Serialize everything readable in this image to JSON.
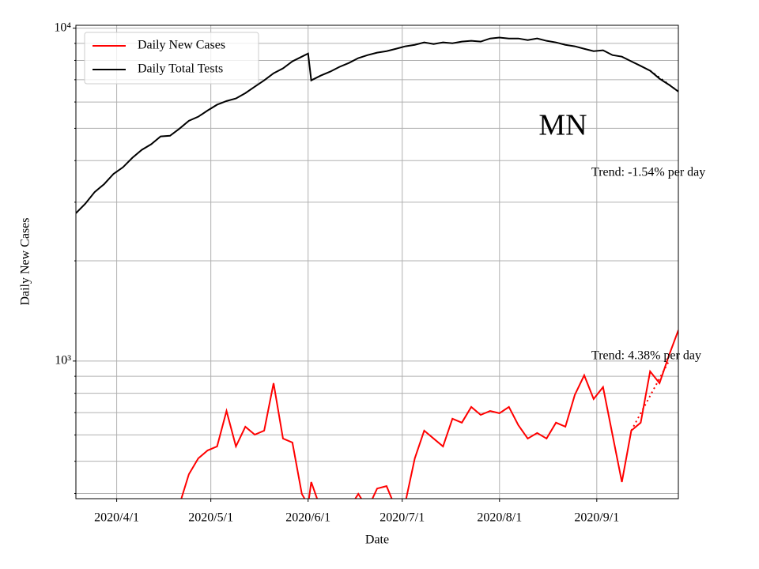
{
  "chart_data": {
    "type": "line",
    "y_label": "Daily New Cases",
    "x_label": "Date",
    "log_scale": true,
    "grid": true,
    "legend": "upper left",
    "annotations": [
      "MN",
      "Trend: -1.54% per day",
      "Trend: 4.38% per day"
    ],
    "xlim": [
      "2020-03-19",
      "2020-09-27"
    ],
    "xticks": [
      {
        "value": "2020-04-01",
        "label": "2020/4/1"
      },
      {
        "value": "2020-05-01",
        "label": "2020/5/1"
      },
      {
        "value": "2020-06-01",
        "label": "2020/6/1"
      },
      {
        "value": "2020-07-01",
        "label": "2020/7/1"
      },
      {
        "value": "2020-08-01",
        "label": "2020/8/1"
      },
      {
        "value": "2020-09-01",
        "label": "2020/9/1"
      }
    ],
    "ylim": [
      386,
      10200
    ],
    "yticks": [
      {
        "value": 1000,
        "label": "10³"
      },
      {
        "value": 10000,
        "label": "10⁴"
      }
    ],
    "yticks_minor": [
      400,
      500,
      600,
      700,
      800,
      900,
      2000,
      3000,
      4000,
      5000,
      6000,
      7000,
      8000,
      9000
    ],
    "x": [
      "2020-03-19",
      "2020-03-22",
      "2020-03-25",
      "2020-03-28",
      "2020-03-31",
      "2020-04-03",
      "2020-04-06",
      "2020-04-09",
      "2020-04-12",
      "2020-04-15",
      "2020-04-18",
      "2020-04-21",
      "2020-04-24",
      "2020-04-27",
      "2020-04-30",
      "2020-05-03",
      "2020-05-06",
      "2020-05-09",
      "2020-05-12",
      "2020-05-15",
      "2020-05-18",
      "2020-05-21",
      "2020-05-24",
      "2020-05-27",
      "2020-05-30",
      "2020-06-01",
      "2020-06-02",
      "2020-06-05",
      "2020-06-08",
      "2020-06-11",
      "2020-06-14",
      "2020-06-17",
      "2020-06-20",
      "2020-06-23",
      "2020-06-26",
      "2020-06-29",
      "2020-07-02",
      "2020-07-05",
      "2020-07-08",
      "2020-07-11",
      "2020-07-14",
      "2020-07-17",
      "2020-07-20",
      "2020-07-23",
      "2020-07-26",
      "2020-07-29",
      "2020-08-01",
      "2020-08-04",
      "2020-08-07",
      "2020-08-10",
      "2020-08-13",
      "2020-08-16",
      "2020-08-19",
      "2020-08-22",
      "2020-08-25",
      "2020-08-28",
      "2020-08-31",
      "2020-09-03",
      "2020-09-06",
      "2020-09-09",
      "2020-09-12",
      "2020-09-15",
      "2020-09-18",
      "2020-09-21",
      "2020-09-24",
      "2020-09-27"
    ],
    "series": [
      {
        "name": "Daily New Cases",
        "color": "#ff0000",
        "values": [
          null,
          null,
          null,
          null,
          null,
          null,
          null,
          null,
          null,
          null,
          null,
          370,
          457,
          510,
          539,
          554,
          708,
          554,
          635,
          601,
          618,
          858,
          585,
          569,
          399,
          370,
          433,
          360,
          360,
          360,
          360,
          399,
          360,
          414,
          421,
          360,
          376,
          510,
          618,
          585,
          554,
          671,
          653,
          728,
          689,
          708,
          697,
          728,
          642,
          585,
          608,
          585,
          653,
          635,
          791,
          906,
          769,
          835,
          601,
          433,
          618,
          653,
          931,
          858,
          1039,
          1238
        ]
      },
      {
        "name": "Daily Total Tests",
        "color": "#000000",
        "values": [
          2780,
          2970,
          3220,
          3400,
          3650,
          3820,
          4080,
          4310,
          4480,
          4730,
          4750,
          4990,
          5270,
          5420,
          5660,
          5890,
          6040,
          6150,
          6380,
          6670,
          6970,
          7320,
          7570,
          7950,
          8210,
          8390,
          6970,
          7200,
          7400,
          7650,
          7860,
          8130,
          8300,
          8440,
          8530,
          8670,
          8820,
          8910,
          9060,
          8960,
          9060,
          9010,
          9110,
          9160,
          9110,
          9310,
          9370,
          9310,
          9310,
          9210,
          9310,
          9160,
          9060,
          8910,
          8820,
          8670,
          8530,
          8580,
          8300,
          8210,
          7950,
          7700,
          7450,
          7050,
          6760,
          6450
        ]
      }
    ],
    "trend_lines": [
      {
        "color": "#ff0000",
        "x": [
          "2020-09-12",
          "2020-09-24"
        ],
        "values": [
          618,
          1000
        ]
      },
      {
        "color": "#000000",
        "x": [
          "2020-09-18",
          "2020-09-27"
        ],
        "values": [
          7450,
          6450
        ]
      }
    ]
  }
}
